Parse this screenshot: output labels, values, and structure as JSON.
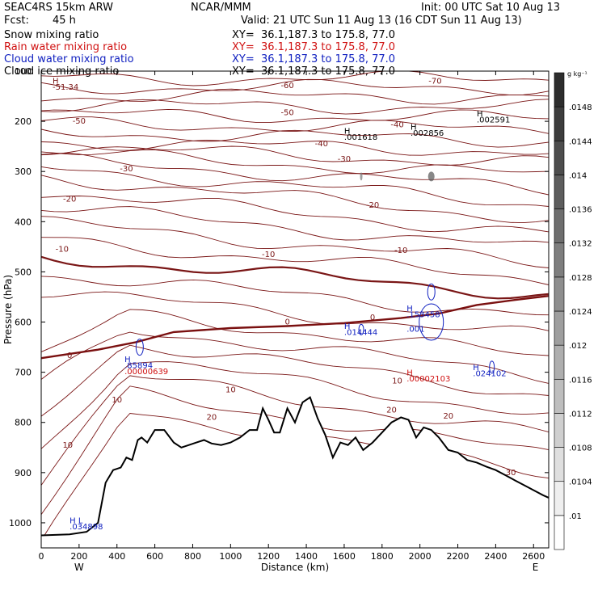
{
  "header": {
    "model": "SEAC4RS 15km ARW",
    "center": "NCAR/MMM",
    "init": "Init: 00 UTC Sat 10 Aug 13",
    "fcst_label": "Fcst:",
    "fcst_value": "45 h",
    "valid": "Valid: 21 UTC Sun 11 Aug 13 (16 CDT Sun 11 Aug 13)"
  },
  "fields": [
    {
      "name": "Snow mixing ratio",
      "xy": "XY=  36.1,187.3 to 175.8, 77.0",
      "color": "#000000"
    },
    {
      "name": "Rain water mixing ratio",
      "xy": "XY=  36.1,187.3 to 175.8, 77.0",
      "color": "#d01010"
    },
    {
      "name": "Cloud water mixing ratio",
      "xy": "XY=  36.1,187.3 to 175.8, 77.0",
      "color": "#1020c0"
    },
    {
      "name": "Cloud ice mixing ratio",
      "xy": "XY=  36.1,187.3 to 175.8, 77.0",
      "color": "#000000"
    }
  ],
  "chart_data": {
    "type": "contour",
    "xlabel": "Distance (km)",
    "ylabel": "Pressure (hPa)",
    "xlim": [
      0,
      2680
    ],
    "ylim": [
      1050,
      100
    ],
    "x_ticks": [
      0,
      200,
      400,
      600,
      800,
      1000,
      1200,
      1400,
      1600,
      1800,
      2000,
      2200,
      2400,
      2600
    ],
    "y_ticks": [
      1000,
      900,
      800,
      700,
      600,
      500,
      400,
      300,
      200,
      100
    ],
    "y_tick_labels": [
      "1000",
      "900",
      "800",
      "700",
      "600",
      "500",
      "400",
      "300",
      "200",
      "100"
    ],
    "direction_left": "W",
    "direction_right": "E",
    "colorbar": {
      "units": "g kg⁻¹",
      "labels": [
        ".01",
        ".0104",
        ".0108",
        ".0112",
        ".0116",
        ".012",
        ".0124",
        ".0128",
        ".0132",
        ".0136",
        ".014",
        ".0144",
        ".0148"
      ]
    },
    "temperature_contours_c": {
      "levels": [
        -70,
        -60,
        -50,
        -40,
        -30,
        -20,
        -10,
        0,
        10,
        20,
        30
      ],
      "color": "#7a1616",
      "zero_line_emphasized": true,
      "label_texts": [
        "-70",
        "-60",
        "-50",
        "-50",
        "-40",
        "-40",
        "-30",
        "-30",
        "-20",
        "-20",
        "-10",
        "-10",
        "-10",
        "0",
        "0",
        "0",
        "10",
        "10",
        "10",
        "10",
        "20",
        "20",
        "20",
        "30"
      ]
    },
    "terrain": {
      "description": "surface pressure along cross section",
      "x": [
        0,
        150,
        240,
        300,
        340,
        380,
        420,
        450,
        480,
        510,
        530,
        560,
        600,
        650,
        700,
        740,
        780,
        820,
        860,
        900,
        950,
        1000,
        1050,
        1100,
        1140,
        1170,
        1200,
        1230,
        1260,
        1300,
        1340,
        1380,
        1420,
        1460,
        1500,
        1540,
        1580,
        1620,
        1660,
        1700,
        1750,
        1800,
        1850,
        1900,
        1940,
        1980,
        2020,
        2060,
        2100,
        2150,
        2200,
        2250,
        2300,
        2350,
        2400,
        2450,
        2500,
        2550,
        2600,
        2650,
        2680
      ],
      "pressure": [
        1025,
        1023,
        1018,
        1000,
        920,
        895,
        890,
        870,
        875,
        835,
        830,
        840,
        815,
        815,
        840,
        850,
        845,
        840,
        835,
        842,
        845,
        840,
        830,
        815,
        815,
        772,
        795,
        820,
        820,
        772,
        800,
        760,
        750,
        792,
        825,
        870,
        840,
        845,
        830,
        855,
        840,
        820,
        800,
        790,
        795,
        830,
        810,
        815,
        830,
        855,
        860,
        875,
        880,
        888,
        895,
        905,
        915,
        925,
        935,
        945,
        950
      ]
    },
    "labels": [
      {
        "text": "H",
        "color": "#7a1616"
      },
      {
        "text": "-51.34",
        "color": "#7a1616"
      },
      {
        "text": "H",
        "color": "#000000"
      },
      {
        "text": ".002591",
        "color": "#000000"
      },
      {
        "text": "H",
        "color": "#000000"
      },
      {
        "text": ".001618",
        "color": "#000000"
      },
      {
        "text": "H",
        "color": "#000000"
      },
      {
        "text": ".002856",
        "color": "#000000"
      },
      {
        "text": "H",
        "color": "#1020c0"
      },
      {
        "text": ".153458",
        "color": "#1020c0"
      },
      {
        "text": "H",
        "color": "#1020c0"
      },
      {
        "text": ".014444",
        "color": "#1020c0"
      },
      {
        "text": ".001",
        "color": "#1020c0"
      },
      {
        "text": "H",
        "color": "#1020c0"
      },
      {
        "text": ".85894",
        "color": "#1020c0"
      },
      {
        "text": ".00000639",
        "color": "#d01010"
      },
      {
        "text": "H",
        "color": "#1020c0"
      },
      {
        "text": ".024102",
        "color": "#1020c0"
      },
      {
        "text": "H",
        "color": "#d01010"
      },
      {
        "text": ".00002103",
        "color": "#d01010"
      },
      {
        "text": "H L",
        "color": "#1020c0"
      },
      {
        "text": ".034898",
        "color": "#1020c0"
      }
    ]
  }
}
